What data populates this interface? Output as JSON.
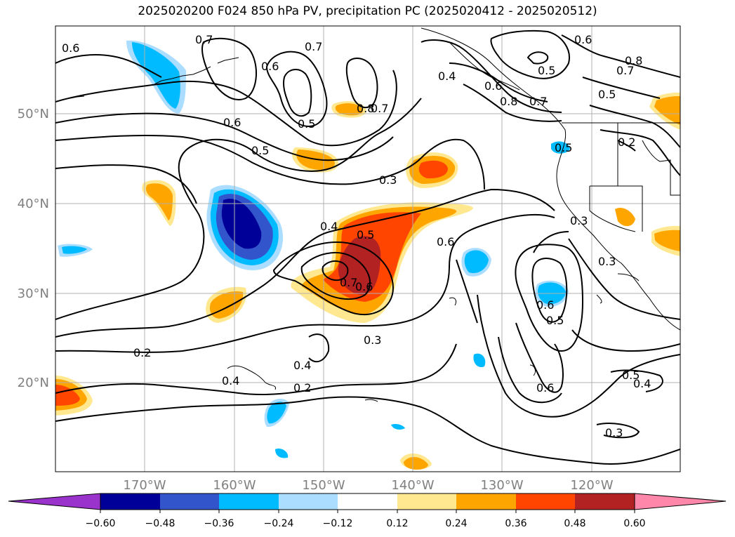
{
  "title": "2025020200 F024 850 hPa PV, precipitation PC (2025020412 - 2025020512)",
  "map": {
    "lat_labels": [
      "50°N",
      "40°N",
      "30°N",
      "20°N"
    ],
    "lon_labels": [
      "170°W",
      "160°W",
      "150°W",
      "140°W",
      "130°W",
      "120°W"
    ],
    "label_color": "#808080",
    "contour_labels": [
      "0.6",
      "0.7",
      "0.6",
      "0.7",
      "0.6",
      "0.5",
      "0.7",
      "0.8",
      "0.6",
      "0.5",
      "0.7",
      "0.8",
      "0.5",
      "0.4",
      "0.8",
      "0.7",
      "0.6",
      "0.5",
      "0.5",
      "0.2",
      "0.3",
      "0.4",
      "0.5",
      "0.6",
      "0.7",
      "0.6",
      "0.3",
      "0.3",
      "0.6",
      "0.5",
      "0.6",
      "0.2",
      "0.3",
      "0.4",
      "0.4",
      "0.2",
      "0.5",
      "0.4",
      "0.3"
    ]
  },
  "colorbar": {
    "ticks": [
      "−0.60",
      "−0.48",
      "−0.36",
      "−0.24",
      "−0.12",
      "0.12",
      "0.24",
      "0.36",
      "0.48",
      "0.60"
    ],
    "colors": [
      "#9933cc",
      "#000099",
      "#3355cc",
      "#00bbff",
      "#aaddff",
      "#ffffff",
      "#ffe890",
      "#ffa500",
      "#ff4500",
      "#b22222",
      "#ff88aa"
    ]
  }
}
